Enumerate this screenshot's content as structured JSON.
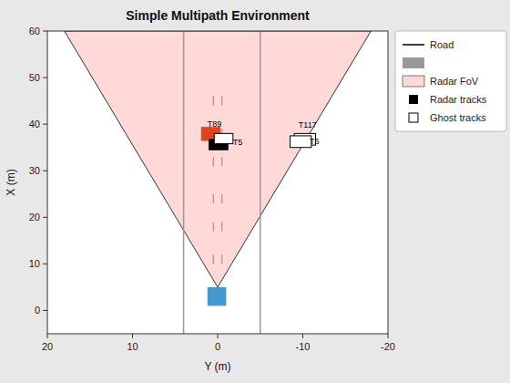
{
  "chart_data": {
    "type": "scene",
    "title": "Simple Multipath Environment",
    "xlabel": "Y (m)",
    "ylabel": "X (m)",
    "xlim": [
      20,
      -20
    ],
    "ylim": [
      -5,
      60
    ],
    "xticks": [
      20,
      10,
      0,
      -10,
      -20
    ],
    "yticks": [
      0,
      10,
      20,
      30,
      40,
      50,
      60
    ],
    "grid": false,
    "legend": "right",
    "background_color": "#e8e8e8",
    "fov": {
      "color": "#ffd8d8",
      "edge_color": "black",
      "points": [
        [
          0,
          5
        ],
        [
          18,
          60
        ],
        [
          -18,
          60
        ]
      ]
    },
    "road_edges": {
      "color": "#999999",
      "x": [
        4,
        -5
      ],
      "y_range": [
        -5,
        60
      ]
    },
    "lane_dashes": {
      "color": "#bb9999",
      "x": [
        -0.5,
        0.5
      ],
      "starts": [
        10,
        17,
        23,
        31,
        37,
        44
      ],
      "length": 2
    },
    "rects": [
      {
        "color": "#4499cc",
        "x": -1.0,
        "y": 1.0,
        "width": 2.2,
        "height": 4.0
      },
      {
        "color": "#dd4422",
        "edge_color": "#dd4422",
        "x": -0.3,
        "y": 36.5,
        "width": 2.2,
        "height": 2.8
      },
      {
        "color": "black",
        "edge_color": "black",
        "x": -1.2,
        "y": 34.5,
        "width": 2.2,
        "height": 2.2
      },
      {
        "color": "white",
        "edge_color": "black",
        "x": -11.5,
        "y": 35.5,
        "width": 2.5,
        "height": 2.5
      },
      {
        "color": "white",
        "edge_color": "black",
        "x": -11.0,
        "y": 35.0,
        "width": 2.5,
        "height": 2.5
      },
      {
        "color": "white",
        "edge_color": "black",
        "x": -1.8,
        "y": 35.8,
        "width": 2.2,
        "height": 2.2
      }
    ],
    "annotations": [
      {
        "text": "T89",
        "x": 1.2,
        "y": 39.5
      },
      {
        "text": "T5",
        "x": -1.8,
        "y": 35.5
      },
      {
        "text": "T117",
        "x": -9.5,
        "y": 39.2
      },
      {
        "text": "T6",
        "x": -10.8,
        "y": 35.8
      }
    ],
    "legend_items": [
      {
        "name": "Road",
        "color": "black",
        "marker": "line"
      },
      {
        "color": "#999999",
        "marker": "patch"
      },
      {
        "name": "Radar FoV",
        "color": "#ffd8d8",
        "edge_color": "black",
        "marker": "patch"
      },
      {
        "name": "Radar tracks",
        "color": "black",
        "marker": "square"
      },
      {
        "name": "Ghost tracks",
        "color": "white",
        "edge_color": "black",
        "marker": "square"
      }
    ]
  }
}
